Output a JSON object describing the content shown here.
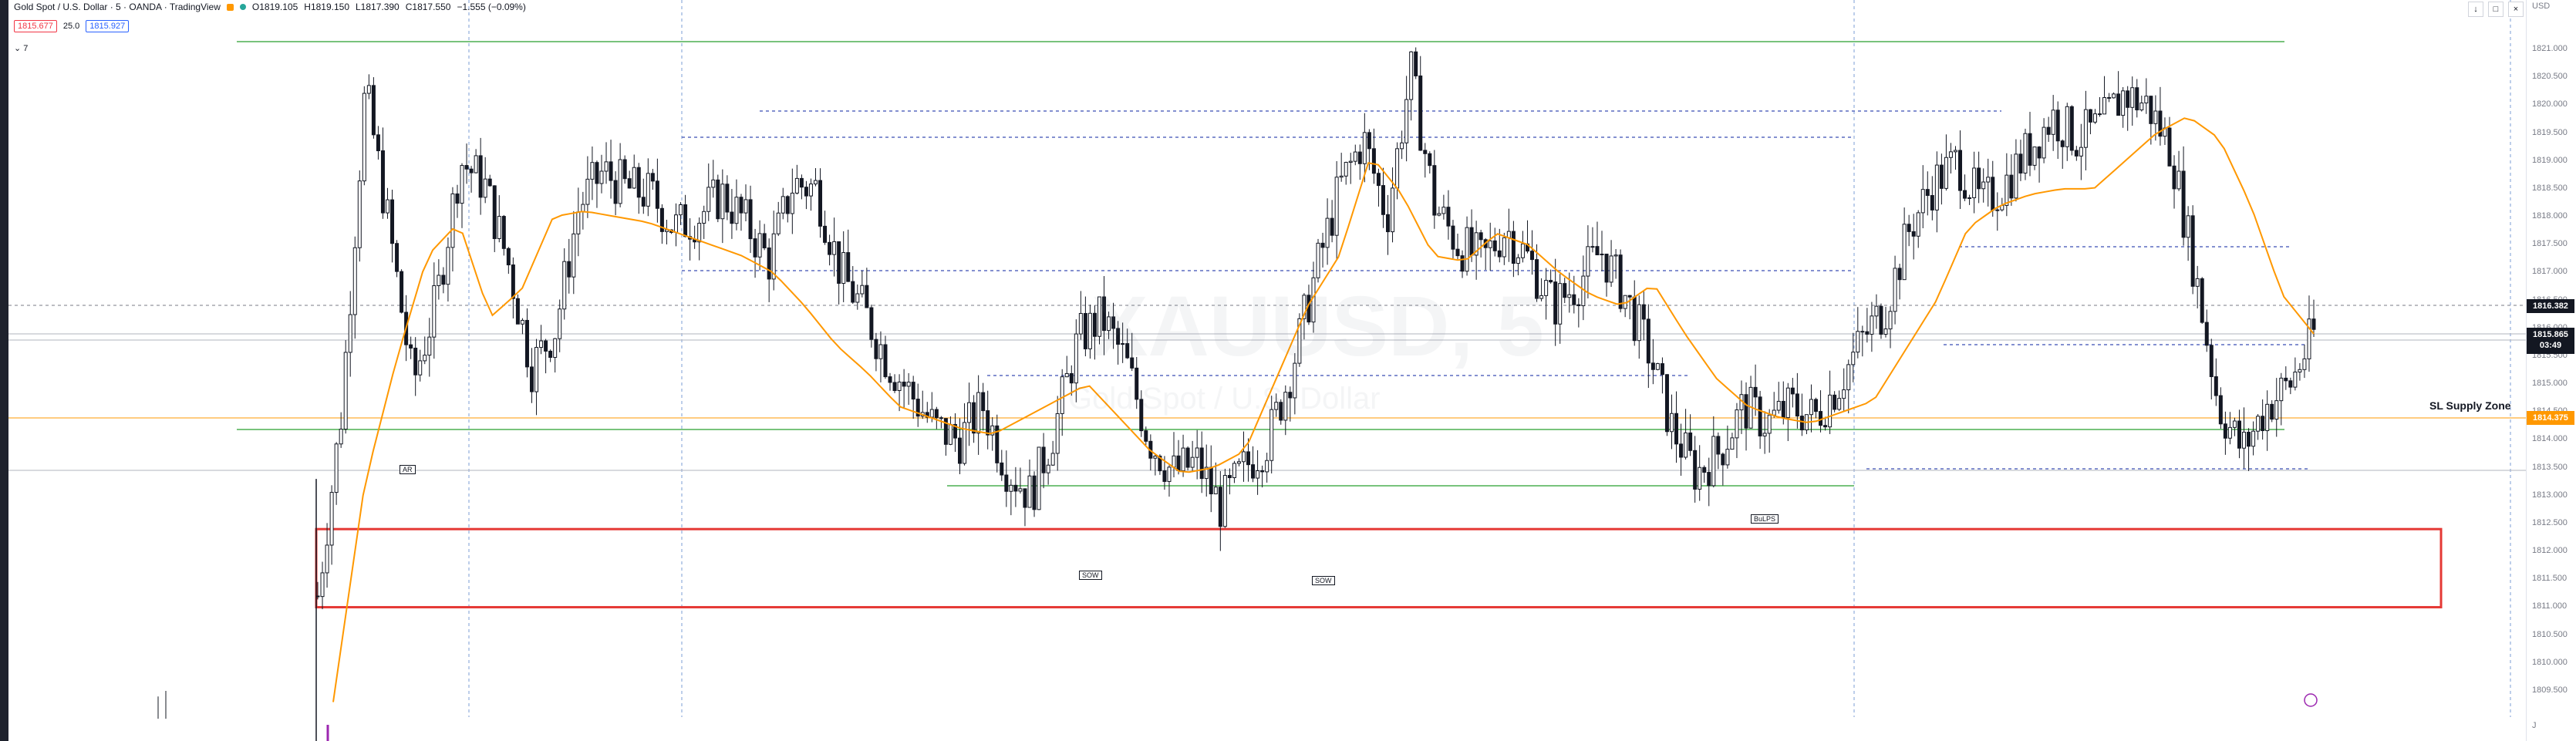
{
  "legend": {
    "title": "Gold Spot / U.S. Dollar · 5 · OANDA · TradingView",
    "open": "O1819.105",
    "high": "H1819.150",
    "low": "L1817.390",
    "close": "C1817.550",
    "change": "−1.555 (−0.09%)",
    "sell_price": "1815.677",
    "spread": "25.0",
    "buy_price": "1815.927",
    "indicator_toggle": "7"
  },
  "watermark": {
    "symbol": "XAUUSD, 5",
    "description": "Gold Spot / U.S. Dollar"
  },
  "axis": {
    "currency": "USD",
    "ticks": [
      "1821.000",
      "1820.500",
      "1820.000",
      "1819.500",
      "1819.000",
      "1818.500",
      "1818.000",
      "1817.500",
      "1817.000",
      "1816.500",
      "1816.000",
      "1815.500",
      "1815.000",
      "1814.500",
      "1814.000",
      "1813.500",
      "1813.000",
      "1812.500",
      "1812.000",
      "1811.500",
      "1811.000",
      "1810.500",
      "1810.000",
      "1809.500"
    ],
    "tick_values": [
      1821.0,
      1820.5,
      1820.0,
      1819.5,
      1819.0,
      1818.5,
      1818.0,
      1817.5,
      1817.0,
      1816.5,
      1816.0,
      1815.5,
      1815.0,
      1814.5,
      1814.0,
      1813.5,
      1813.0,
      1812.5,
      1812.0,
      1811.5,
      1811.0,
      1810.5,
      1810.0,
      1809.5
    ],
    "crosshair_price": "1816.382",
    "last_price": "1815.865",
    "countdown": "03:49",
    "ma_price": "1814.375",
    "bottom_letter": "J"
  },
  "annotations": {
    "supply_zone_label": "SL Supply Zone",
    "markers": [
      "AR",
      "SOW",
      "SOW",
      "BuLPS"
    ]
  },
  "chart_data": {
    "type": "candlestick",
    "symbol": "XAUUSD",
    "timeframe": "5",
    "ylim": [
      1809.0,
      1822.3
    ],
    "legend_title": "Gold Spot / U.S. Dollar · 5 · OANDA · TradingView",
    "ma_color": "#ff9800",
    "up_color": "#131722",
    "down_color": "#131722",
    "support_levels": [
      1821.4,
      1820.0,
      1819.5,
      1817.0,
      1815.5,
      1814.4,
      1814.1,
      1813.5,
      1813.1
    ],
    "supply_zone": {
      "top": 1812.4,
      "bottom": 1811.0
    },
    "close_path": [
      1811.2,
      1814.5,
      1820.3,
      1817.8,
      1815.0,
      1816.5,
      1819.0,
      1818.6,
      1817.2,
      1815.3,
      1816.0,
      1818.2,
      1818.8,
      1818.5,
      1818.4,
      1817.8,
      1818.0,
      1818.4,
      1817.9,
      1817.2,
      1818.6,
      1818.5,
      1817.0,
      1816.3,
      1815.4,
      1814.8,
      1814.2,
      1814.0,
      1814.6,
      1813.5,
      1813.0,
      1814.2,
      1815.8,
      1816.2,
      1815.4,
      1814.0,
      1813.4,
      1813.6,
      1812.8,
      1813.5,
      1814.0,
      1815.3,
      1817.0,
      1818.5,
      1819.4,
      1818.0,
      1820.6,
      1818.2,
      1817.5,
      1817.2,
      1817.8,
      1817.2,
      1816.4,
      1816.8,
      1817.4,
      1816.6,
      1815.6,
      1814.2,
      1813.4,
      1813.8,
      1814.6,
      1814.3,
      1814.6,
      1814.4,
      1815.0,
      1815.8,
      1816.4,
      1817.8,
      1818.6,
      1819.0,
      1818.2,
      1818.6,
      1819.2,
      1819.8,
      1819.4,
      1819.6,
      1820.2,
      1820.0,
      1819.2,
      1817.0,
      1814.6,
      1813.8,
      1814.6,
      1815.0,
      1815.9
    ],
    "ma_path": [
      1809.3,
      1813.2,
      1815.4,
      1817.3,
      1817.9,
      1816.2,
      1816.7,
      1818.0,
      1818.1,
      1818.0,
      1817.9,
      1817.7,
      1817.5,
      1817.3,
      1817.0,
      1816.4,
      1815.7,
      1815.2,
      1814.6,
      1814.4,
      1814.2,
      1814.1,
      1814.4,
      1814.7,
      1815.0,
      1814.4,
      1813.8,
      1813.4,
      1813.5,
      1813.8,
      1815.1,
      1816.4,
      1817.3,
      1819.1,
      1818.4,
      1817.3,
      1817.2,
      1817.7,
      1817.5,
      1817.0,
      1816.6,
      1816.4,
      1816.8,
      1815.9,
      1815.1,
      1814.6,
      1814.4,
      1814.3,
      1814.5,
      1814.7,
      1815.6,
      1816.5,
      1817.8,
      1818.2,
      1818.4,
      1818.5,
      1818.5,
      1819.0,
      1819.5,
      1819.8,
      1819.4,
      1818.2,
      1816.6,
      1815.9
    ]
  }
}
